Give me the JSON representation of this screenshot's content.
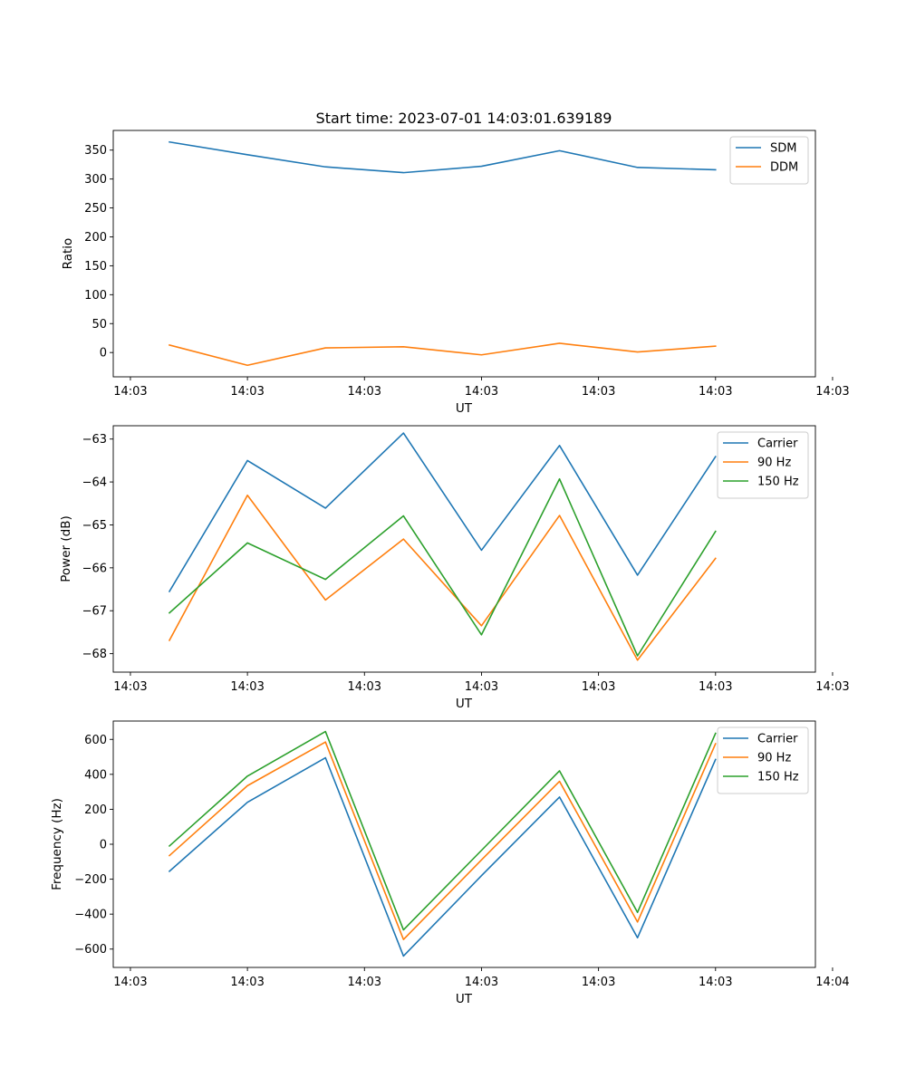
{
  "chart_data": [
    {
      "type": "line",
      "title": "Start time: 2023-07-01 14:03:01.639189",
      "xlabel": "UT",
      "ylabel": "Ratio",
      "x": [
        1.0,
        2.0,
        3.0,
        4.0,
        5.0,
        6.0,
        7.0,
        8.0
      ],
      "xlim": [
        0.28,
        9.28
      ],
      "xticks": [
        0.5,
        2.0,
        3.5,
        5.0,
        6.5,
        8.0,
        9.5
      ],
      "xtick_labels": [
        "14:03",
        "14:03",
        "14:03",
        "14:03",
        "14:03",
        "14:03",
        "14:03"
      ],
      "ylim": [
        -42,
        384
      ],
      "yticks": [
        0,
        50,
        100,
        150,
        200,
        250,
        300,
        350
      ],
      "ytick_labels": [
        "0",
        "50",
        "100",
        "150",
        "200",
        "250",
        "300",
        "350"
      ],
      "legend_position": "top-right",
      "series": [
        {
          "name": "SDM",
          "color": "#1f77b4",
          "values": [
            364,
            342,
            321,
            311,
            322,
            349,
            320,
            316
          ]
        },
        {
          "name": "DDM",
          "color": "#ff7f0e",
          "values": [
            13,
            -22,
            8,
            10,
            -4,
            16,
            1,
            11
          ]
        }
      ]
    },
    {
      "type": "line",
      "title": "",
      "xlabel": "UT",
      "ylabel": "Power (dB)",
      "x": [
        1.0,
        2.0,
        3.0,
        4.0,
        5.0,
        6.0,
        7.0,
        8.0
      ],
      "xlim": [
        0.28,
        9.28
      ],
      "xticks": [
        0.5,
        2.0,
        3.5,
        5.0,
        6.5,
        8.0,
        9.5
      ],
      "xtick_labels": [
        "14:03",
        "14:03",
        "14:03",
        "14:03",
        "14:03",
        "14:03",
        "14:03"
      ],
      "ylim": [
        -68.43,
        -62.69
      ],
      "yticks": [
        -68,
        -67,
        -66,
        -65,
        -64,
        -63
      ],
      "ytick_labels": [
        "−68",
        "−67",
        "−66",
        "−65",
        "−64",
        "−63"
      ],
      "legend_position": "top-right",
      "series": [
        {
          "name": "Carrier",
          "color": "#1f77b4",
          "values": [
            -66.55,
            -63.5,
            -64.61,
            -62.86,
            -65.59,
            -63.15,
            -66.17,
            -63.41
          ]
        },
        {
          "name": "90 Hz",
          "color": "#ff7f0e",
          "values": [
            -67.69,
            -64.31,
            -66.75,
            -65.33,
            -67.35,
            -64.78,
            -68.15,
            -65.78
          ]
        },
        {
          "name": "150 Hz",
          "color": "#2ca02c",
          "values": [
            -67.05,
            -65.42,
            -66.27,
            -64.79,
            -67.56,
            -63.93,
            -68.05,
            -65.15
          ]
        }
      ]
    },
    {
      "type": "line",
      "title": "",
      "xlabel": "UT",
      "ylabel": "Frequency (Hz)",
      "x": [
        1.0,
        2.0,
        3.0,
        4.0,
        5.0,
        6.0,
        7.0,
        8.0
      ],
      "xlim": [
        0.28,
        9.28
      ],
      "xticks": [
        0.5,
        2.0,
        3.5,
        5.0,
        6.5,
        8.0,
        9.5
      ],
      "xtick_labels": [
        "14:03",
        "14:03",
        "14:03",
        "14:03",
        "14:03",
        "14:03",
        "14:04"
      ],
      "ylim": [
        -705,
        705
      ],
      "yticks": [
        -600,
        -400,
        -200,
        0,
        200,
        400,
        600
      ],
      "ytick_labels": [
        "−600",
        "−400",
        "−200",
        "0",
        "200",
        "400",
        "600"
      ],
      "legend_position": "top-right",
      "series": [
        {
          "name": "Carrier",
          "color": "#1f77b4",
          "values": [
            -155,
            240,
            495,
            -640,
            -180,
            270,
            -535,
            485
          ]
        },
        {
          "name": "90 Hz",
          "color": "#ff7f0e",
          "values": [
            -65,
            335,
            585,
            -545,
            -90,
            360,
            -445,
            575
          ]
        },
        {
          "name": "150 Hz",
          "color": "#2ca02c",
          "values": [
            -10,
            390,
            645,
            -490,
            -35,
            420,
            -390,
            635
          ]
        }
      ]
    }
  ]
}
